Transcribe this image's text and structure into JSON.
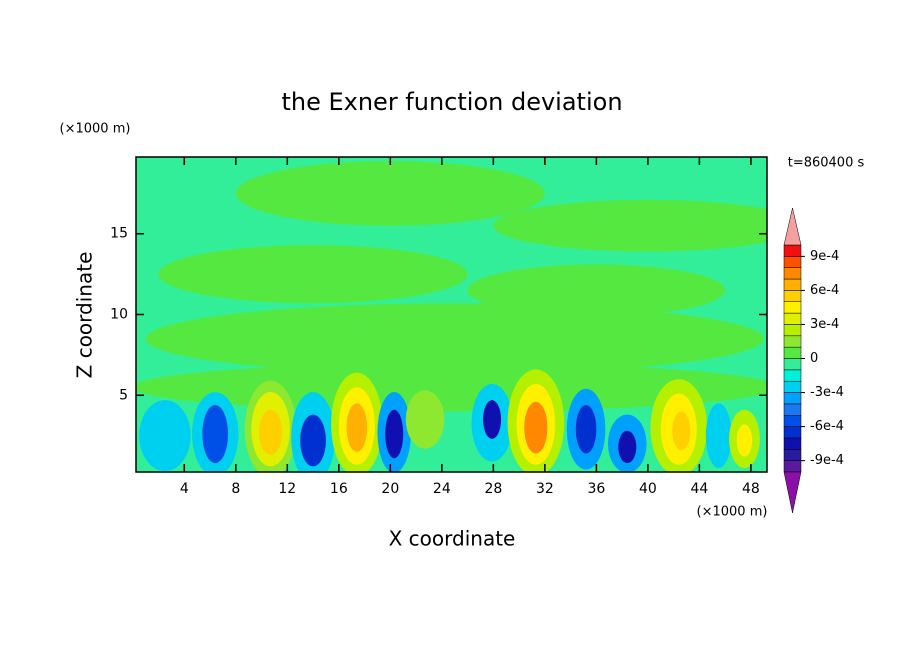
{
  "chart_data": {
    "type": "contour",
    "title": "the Exner function deviation",
    "xlabel": "X coordinate",
    "ylabel": "Z coordinate",
    "xunit": "(×1000 m)",
    "yunit": "(×1000 m)",
    "annotation": "t=860400 s",
    "xlim": [
      0.25,
      49.25
    ],
    "xticks": [
      4,
      8,
      12,
      16,
      20,
      24,
      28,
      32,
      36,
      40,
      44,
      48
    ],
    "ylim": [
      0.25,
      19.75
    ],
    "yticks": [
      5,
      10,
      15
    ],
    "levels": [
      -0.001,
      -0.0009,
      -0.0008,
      -0.0007,
      -0.0006,
      -0.0005,
      -0.0004,
      -0.0003,
      -0.0002,
      -0.0001,
      0,
      0.0001,
      0.0002,
      0.0003,
      0.0004,
      0.0005,
      0.0006,
      0.0007,
      0.0008,
      0.0009,
      0.001
    ],
    "colors": [
      "#5b1a9e",
      "#2a1a9e",
      "#1010b0",
      "#0030d0",
      "#0050e8",
      "#1a78f0",
      "#00a0ff",
      "#00d0f0",
      "#00f0d8",
      "#33ee99",
      "#55e840",
      "#8ee830",
      "#b4f000",
      "#e0f000",
      "#fff000",
      "#ffd000",
      "#ffb000",
      "#ff8800",
      "#ff5000",
      "#f01010"
    ],
    "over_color": "#f4a0a0",
    "under_color": "#8a10a8",
    "cbticks": [
      {
        "value": 0.0009,
        "label": "9e-4"
      },
      {
        "value": 0.0006,
        "label": "6e-4"
      },
      {
        "value": 0.0003,
        "label": "3e-4"
      },
      0,
      {
        "value": -0.0003,
        "label": "-3e-4"
      },
      {
        "value": -0.0006,
        "label": "-6e-4"
      },
      {
        "value": -0.0009,
        "label": "-9e-4"
      }
    ],
    "anomalies": [
      {
        "x": 20,
        "z": 17.5,
        "dx": 12,
        "dz": 2,
        "value": 5e-05
      },
      {
        "x": 40,
        "z": 15.5,
        "dx": 12,
        "dz": 1.6,
        "value": 5e-05
      },
      {
        "x": 14,
        "z": 12.5,
        "dx": 12,
        "dz": 1.8,
        "value": 5e-05
      },
      {
        "x": 36,
        "z": 11.5,
        "dx": 10,
        "dz": 1.6,
        "value": 5e-05
      },
      {
        "x": 25,
        "z": 8.5,
        "dx": 24,
        "dz": 2.2,
        "value": 5e-05
      },
      {
        "x": 25,
        "z": 5.5,
        "dx": 25,
        "dz": 1.5,
        "value": 5e-05
      },
      {
        "x": 2.5,
        "z": 2.5,
        "dx": 2,
        "dz": 2.2,
        "value": -0.00025
      },
      {
        "x": 6.4,
        "z": 2.6,
        "dx": 1.8,
        "dz": 2.6,
        "value": -0.00025
      },
      {
        "x": 6.4,
        "z": 2.6,
        "dx": 1,
        "dz": 1.8,
        "value": -0.00055
      },
      {
        "x": 10.7,
        "z": 2.9,
        "dx": 2,
        "dz": 3,
        "value": 0.00015
      },
      {
        "x": 10.7,
        "z": 2.9,
        "dx": 1.5,
        "dz": 2.3,
        "value": 0.00035
      },
      {
        "x": 10.7,
        "z": 2.7,
        "dx": 0.9,
        "dz": 1.4,
        "value": 0.00055
      },
      {
        "x": 14,
        "z": 2.4,
        "dx": 1.7,
        "dz": 2.8,
        "value": -0.00025
      },
      {
        "x": 14,
        "z": 2.2,
        "dx": 1,
        "dz": 1.6,
        "value": -0.00065
      },
      {
        "x": 17.4,
        "z": 3.2,
        "dx": 2,
        "dz": 3.2,
        "value": 0.00025
      },
      {
        "x": 17.4,
        "z": 3.1,
        "dx": 1.4,
        "dz": 2.4,
        "value": 0.00045
      },
      {
        "x": 17.4,
        "z": 3,
        "dx": 0.8,
        "dz": 1.5,
        "value": 0.00065
      },
      {
        "x": 20.3,
        "z": 2.7,
        "dx": 1.3,
        "dz": 2.5,
        "value": -0.00035
      },
      {
        "x": 20.3,
        "z": 2.6,
        "dx": 0.7,
        "dz": 1.5,
        "value": -0.00075
      },
      {
        "x": 22.7,
        "z": 3.5,
        "dx": 1.5,
        "dz": 1.8,
        "value": 0.00015
      },
      {
        "x": 27.9,
        "z": 3.3,
        "dx": 1.6,
        "dz": 2.4,
        "value": -0.00025
      },
      {
        "x": 27.9,
        "z": 3.5,
        "dx": 0.7,
        "dz": 1.2,
        "value": -0.00075
      },
      {
        "x": 31.3,
        "z": 3.3,
        "dx": 2.2,
        "dz": 3.3,
        "value": 0.00025
      },
      {
        "x": 31.3,
        "z": 3.2,
        "dx": 1.5,
        "dz": 2.5,
        "value": 0.00045
      },
      {
        "x": 31.3,
        "z": 3,
        "dx": 0.9,
        "dz": 1.6,
        "value": 0.00075
      },
      {
        "x": 35.2,
        "z": 2.9,
        "dx": 1.5,
        "dz": 2.5,
        "value": -0.00035
      },
      {
        "x": 35.2,
        "z": 2.9,
        "dx": 0.8,
        "dz": 1.5,
        "value": -0.00065
      },
      {
        "x": 38.4,
        "z": 2,
        "dx": 1.5,
        "dz": 1.8,
        "value": -0.00035
      },
      {
        "x": 38.4,
        "z": 1.8,
        "dx": 0.7,
        "dz": 1,
        "value": -0.00075
      },
      {
        "x": 42.4,
        "z": 3,
        "dx": 2.2,
        "dz": 3,
        "value": 0.00025
      },
      {
        "x": 42.4,
        "z": 2.9,
        "dx": 1.4,
        "dz": 2.2,
        "value": 0.00045
      },
      {
        "x": 42.6,
        "z": 2.8,
        "dx": 0.7,
        "dz": 1.2,
        "value": 0.00055
      },
      {
        "x": 45.5,
        "z": 2.5,
        "dx": 1,
        "dz": 2,
        "value": -0.00025
      },
      {
        "x": 47.5,
        "z": 2.3,
        "dx": 1.2,
        "dz": 1.8,
        "value": 0.00025
      },
      {
        "x": 47.5,
        "z": 2.2,
        "dx": 0.6,
        "dz": 1,
        "value": 0.00045
      }
    ]
  }
}
